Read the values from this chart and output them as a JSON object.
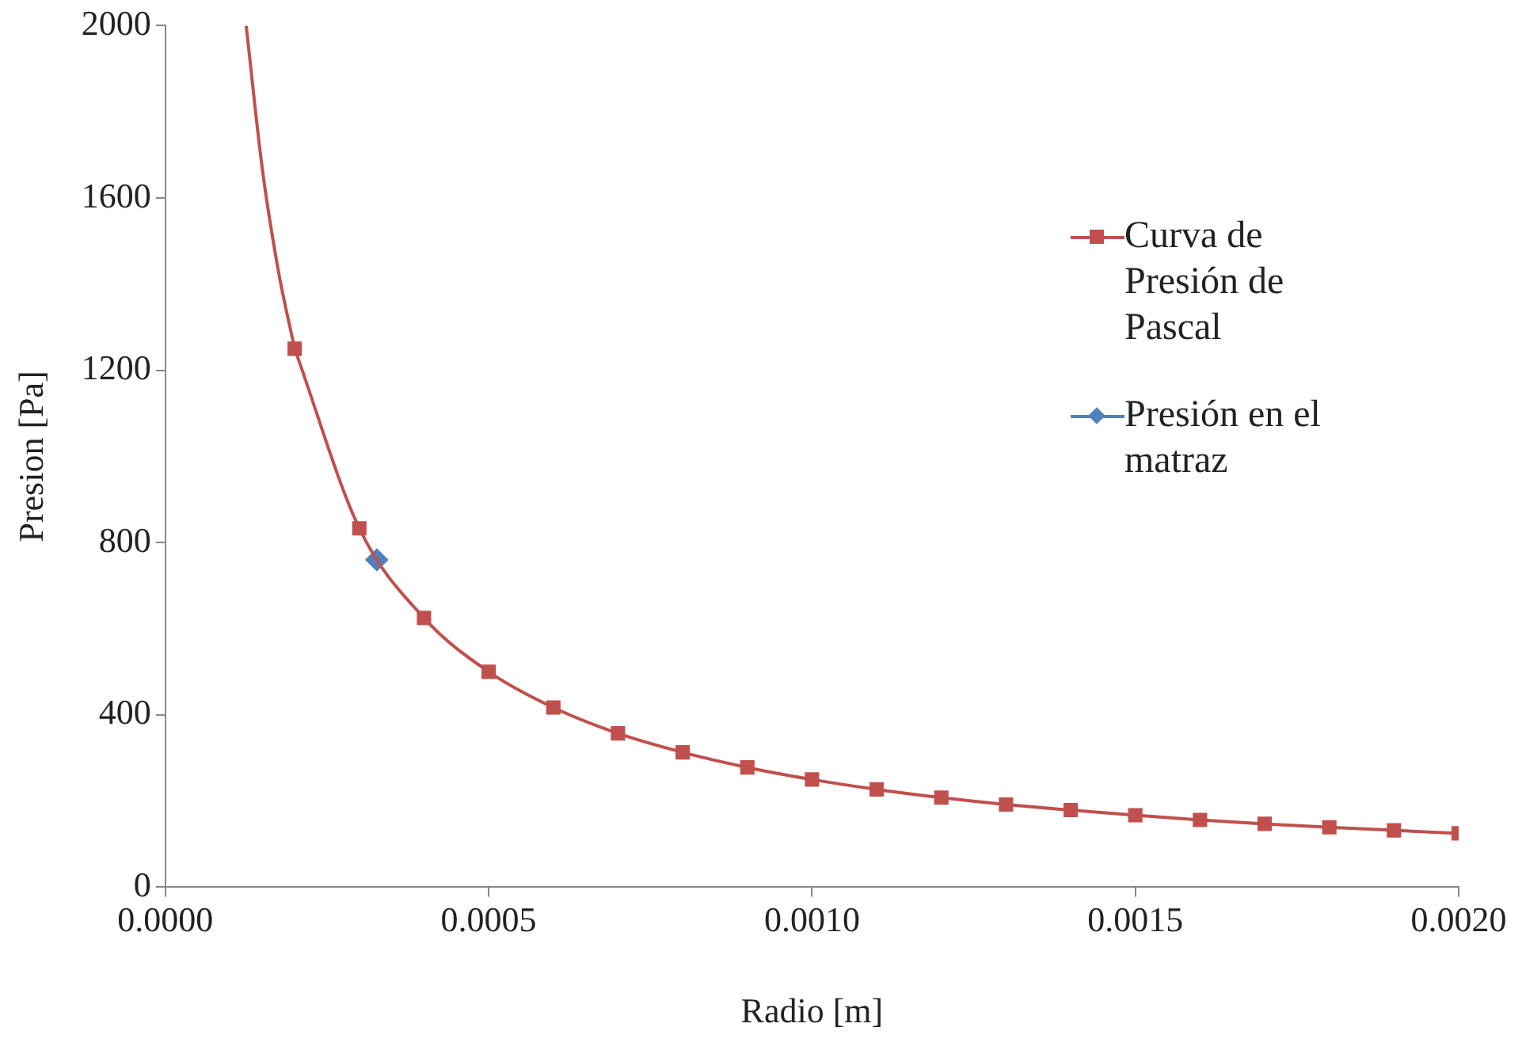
{
  "chart_data": {
    "type": "line",
    "xlabel": "Radio [m]",
    "ylabel": "Presion [Pa]",
    "xlim": [
      0,
      0.002
    ],
    "xticks": [
      {
        "value": 0,
        "label": "0.0000"
      },
      {
        "value": 0.0005,
        "label": "0.0005"
      },
      {
        "value": 0.001,
        "label": "0.0010"
      },
      {
        "value": 0.0015,
        "label": "0.0015"
      },
      {
        "value": 0.002,
        "label": "0.0020"
      }
    ],
    "ylim": [
      0,
      2000
    ],
    "yticks": [
      0,
      400,
      800,
      1200,
      1600,
      2000
    ],
    "grid": false,
    "legend": "right",
    "series": [
      {
        "color": "#c0504d",
        "marker": "none",
        "x": [
          0.000125,
          0.00015,
          0.000175,
          0.0002
        ],
        "values": [
          2000,
          1667,
          1429,
          1250
        ]
      },
      {
        "name": "Curva de Presión de Pascal",
        "color": "#c0504d",
        "marker": "square",
        "x": [
          0.0002,
          0.0003,
          0.0004,
          0.0005,
          0.0006,
          0.0007,
          0.0008,
          0.0009,
          0.001,
          0.0011,
          0.0012,
          0.0013,
          0.0014,
          0.0015,
          0.0016,
          0.0017,
          0.0018,
          0.0019,
          0.002
        ],
        "values": [
          1250,
          833,
          625,
          500,
          417,
          357,
          313,
          278,
          250,
          227,
          208,
          192,
          179,
          167,
          156,
          147,
          139,
          132,
          125
        ]
      },
      {
        "type": "scatter",
        "name": "Presión en el matraz",
        "color": "#4f81bd",
        "marker": "diamond",
        "x": [
          0.000327
        ],
        "values": [
          760
        ]
      }
    ]
  }
}
